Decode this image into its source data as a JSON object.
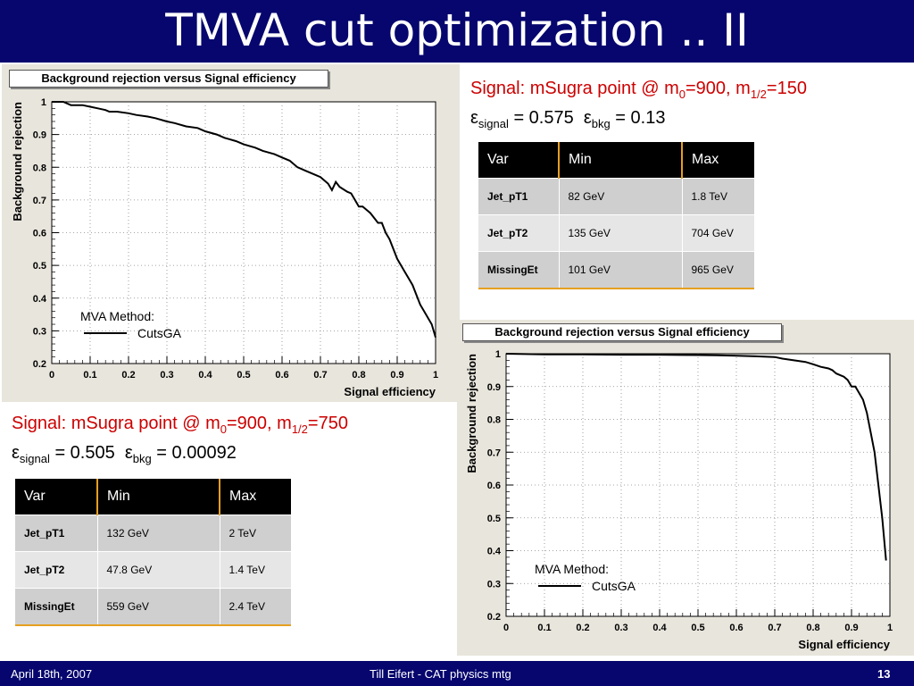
{
  "title": "TMVA cut optimization .. II",
  "footer": {
    "date": "April 18th, 2007",
    "center": "Till Eifert - CAT physics mtg",
    "page": "13"
  },
  "signal_1": {
    "line1_prefix": "Signal: mSugra point @ m",
    "line1_sub0": "0",
    "line1_mid": "=900, m",
    "line1_sub1": "1/2",
    "line1_end": "=150",
    "eps_sym": "ε",
    "eps_sig_sub": "signal",
    "eps_sig_val": " = 0.575  ",
    "eps_bkg_sub": "bkg",
    "eps_bkg_val": " = 0.13"
  },
  "signal_2": {
    "line1_prefix": "Signal: mSugra point @ m",
    "line1_sub0": "0",
    "line1_mid": "=900, m",
    "line1_sub1": "1/2",
    "line1_end": "=750",
    "eps_sym": "ε",
    "eps_sig_sub": "signal",
    "eps_sig_val": " = 0.505  ",
    "eps_bkg_sub": "bkg",
    "eps_bkg_val": " = 0.00092"
  },
  "table_1": {
    "headers": [
      "Var",
      "Min",
      "Max"
    ],
    "rows": [
      [
        "Jet_pT1",
        "82 GeV",
        "1.8 TeV"
      ],
      [
        "Jet_pT2",
        "135 GeV",
        "704 GeV"
      ],
      [
        "MissingEt",
        "101 GeV",
        "965 GeV"
      ]
    ]
  },
  "table_2": {
    "headers": [
      "Var",
      "Min",
      "Max"
    ],
    "rows": [
      [
        "Jet_pT1",
        "132 GeV",
        "2 TeV"
      ],
      [
        "Jet_pT2",
        "47.8 GeV",
        "1.4 TeV"
      ],
      [
        "MissingEt",
        "559 GeV",
        "2.4 TeV"
      ]
    ]
  },
  "chart_data": [
    {
      "type": "line",
      "title": "Background rejection versus Signal efficiency",
      "xlabel": "Signal efficiency",
      "ylabel": "Background rejection",
      "xlim": [
        0,
        1
      ],
      "ylim": [
        0.2,
        1
      ],
      "grid": true,
      "xticks": [
        "0",
        "0.1",
        "0.2",
        "0.3",
        "0.4",
        "0.5",
        "0.6",
        "0.7",
        "0.8",
        "0.9",
        "1"
      ],
      "yticks": [
        "0.2",
        "0.3",
        "0.4",
        "0.5",
        "0.6",
        "0.7",
        "0.8",
        "0.9",
        "1"
      ],
      "legend": {
        "header": "MVA Method:",
        "entry": "CutsGA",
        "position": "bottom-left"
      },
      "series": [
        {
          "name": "CutsGA",
          "x": [
            0.0,
            0.03,
            0.05,
            0.08,
            0.1,
            0.12,
            0.14,
            0.15,
            0.17,
            0.2,
            0.22,
            0.25,
            0.27,
            0.3,
            0.32,
            0.35,
            0.38,
            0.4,
            0.43,
            0.45,
            0.48,
            0.5,
            0.53,
            0.55,
            0.58,
            0.6,
            0.62,
            0.64,
            0.66,
            0.68,
            0.7,
            0.72,
            0.73,
            0.74,
            0.75,
            0.77,
            0.78,
            0.79,
            0.8,
            0.81,
            0.82,
            0.83,
            0.85,
            0.86,
            0.87,
            0.88,
            0.89,
            0.9,
            0.91,
            0.92,
            0.93,
            0.94,
            0.95,
            0.96,
            0.97,
            0.98,
            0.99,
            1.0
          ],
          "y": [
            1.0,
            1.0,
            0.99,
            0.99,
            0.985,
            0.98,
            0.975,
            0.97,
            0.97,
            0.965,
            0.96,
            0.955,
            0.95,
            0.94,
            0.935,
            0.925,
            0.92,
            0.91,
            0.9,
            0.89,
            0.88,
            0.87,
            0.86,
            0.85,
            0.84,
            0.83,
            0.82,
            0.8,
            0.79,
            0.78,
            0.77,
            0.75,
            0.73,
            0.755,
            0.74,
            0.725,
            0.72,
            0.7,
            0.68,
            0.68,
            0.67,
            0.66,
            0.63,
            0.63,
            0.6,
            0.58,
            0.55,
            0.52,
            0.5,
            0.48,
            0.46,
            0.44,
            0.41,
            0.38,
            0.36,
            0.34,
            0.32,
            0.28
          ]
        }
      ]
    },
    {
      "type": "line",
      "title": "Background rejection versus Signal efficiency",
      "xlabel": "Signal efficiency",
      "ylabel": "Background rejection",
      "xlim": [
        0,
        1
      ],
      "ylim": [
        0.2,
        1
      ],
      "grid": true,
      "xticks": [
        "0",
        "0.1",
        "0.2",
        "0.3",
        "0.4",
        "0.5",
        "0.6",
        "0.7",
        "0.8",
        "0.9",
        "1"
      ],
      "yticks": [
        "0.2",
        "0.3",
        "0.4",
        "0.5",
        "0.6",
        "0.7",
        "0.8",
        "0.9",
        "1"
      ],
      "legend": {
        "header": "MVA Method:",
        "entry": "CutsGA",
        "position": "bottom-left"
      },
      "series": [
        {
          "name": "CutsGA",
          "x": [
            0.0,
            0.1,
            0.2,
            0.3,
            0.4,
            0.5,
            0.55,
            0.6,
            0.65,
            0.7,
            0.72,
            0.75,
            0.78,
            0.8,
            0.82,
            0.84,
            0.85,
            0.86,
            0.87,
            0.88,
            0.89,
            0.9,
            0.91,
            0.92,
            0.93,
            0.94,
            0.95,
            0.96,
            0.97,
            0.98,
            0.99
          ],
          "y": [
            1.0,
            0.998,
            0.998,
            0.997,
            0.997,
            0.996,
            0.995,
            0.994,
            0.992,
            0.99,
            0.985,
            0.98,
            0.975,
            0.968,
            0.96,
            0.955,
            0.95,
            0.94,
            0.935,
            0.93,
            0.92,
            0.9,
            0.9,
            0.88,
            0.86,
            0.82,
            0.76,
            0.7,
            0.6,
            0.5,
            0.37
          ]
        }
      ]
    }
  ]
}
